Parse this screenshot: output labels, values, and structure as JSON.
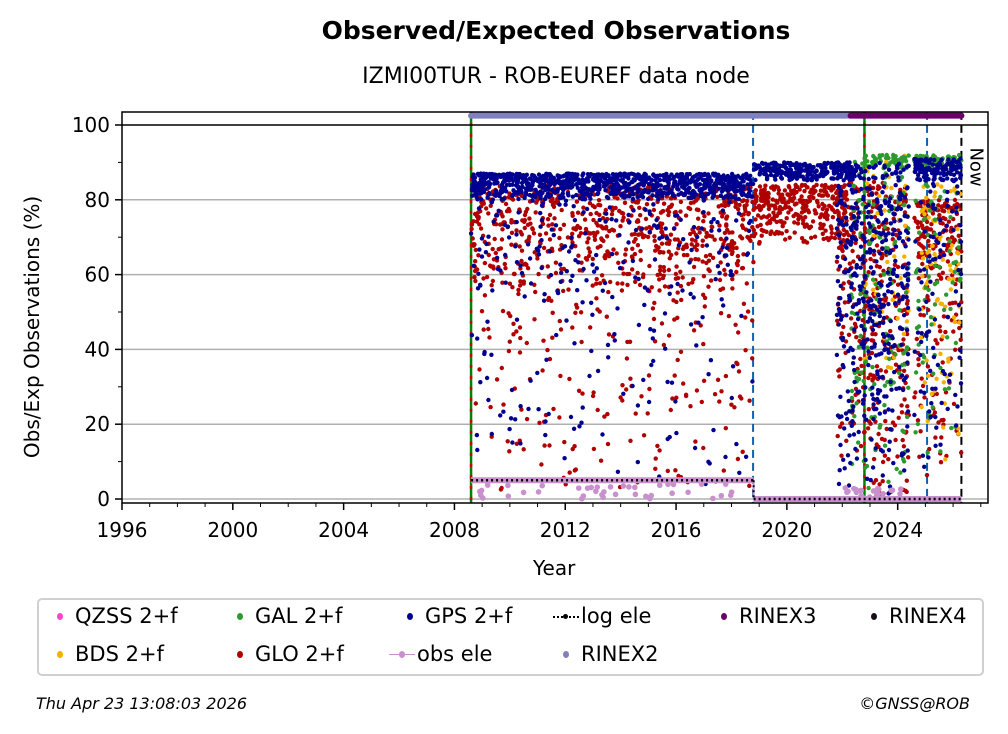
{
  "chart_data": {
    "type": "scatter",
    "title": "Observed/Expected Observations",
    "subtitle": "IZMI00TUR - ROB-EUREF data node",
    "xlabel": "Year",
    "ylabel": "Obs/Exp Observations (%)",
    "xlim": [
      1996,
      2027.26
    ],
    "ylim": [
      -1,
      103.5
    ],
    "xticks": [
      1996,
      2000,
      2004,
      2008,
      2012,
      2016,
      2020,
      2024
    ],
    "yticks": [
      0,
      20,
      40,
      60,
      80,
      100
    ],
    "grid": "horizontal",
    "legend_position": "bottom",
    "now_label": "Now",
    "series": [
      {
        "name": "QZSS 2+f",
        "color": "#ff44cc",
        "kind": "point",
        "clusters": []
      },
      {
        "name": "BDS 2+f",
        "color": "#f5b000",
        "kind": "point",
        "clusters": [
          [
            2022.7,
            2024.4,
            30,
            92,
            60
          ],
          [
            2024.8,
            2026.3,
            10,
            85,
            90
          ]
        ]
      },
      {
        "name": "GAL 2+f",
        "color": "#2e9a2e",
        "kind": "point",
        "clusters": [
          [
            2022.3,
            2024.4,
            0,
            92,
            160
          ],
          [
            2022.8,
            2024.4,
            88,
            92,
            60
          ],
          [
            2024.6,
            2026.3,
            88,
            92,
            70
          ],
          [
            2024.6,
            2026.3,
            5,
            85,
            70
          ]
        ]
      },
      {
        "name": "GLO 2+f",
        "color": "#b00000",
        "kind": "point",
        "clusters": [
          [
            2008.6,
            2018.8,
            55,
            84,
            700
          ],
          [
            2008.6,
            2018.8,
            2,
            55,
            180
          ],
          [
            2018.8,
            2022.2,
            68,
            84,
            300
          ],
          [
            2021.8,
            2024.4,
            0,
            85,
            350
          ],
          [
            2024.6,
            2026.3,
            60,
            80,
            140
          ],
          [
            2024.6,
            2026.3,
            5,
            60,
            80
          ]
        ]
      },
      {
        "name": "GPS 2+f",
        "color": "#000090",
        "kind": "point",
        "clusters": [
          [
            2008.6,
            2018.8,
            80,
            87,
            900
          ],
          [
            2008.6,
            2018.8,
            50,
            80,
            180
          ],
          [
            2008.6,
            2018.8,
            2,
            50,
            90
          ],
          [
            2018.8,
            2022.5,
            85,
            90,
            250
          ],
          [
            2021.8,
            2024.4,
            0,
            90,
            450
          ],
          [
            2024.6,
            2026.3,
            85,
            91,
            130
          ],
          [
            2024.6,
            2026.3,
            5,
            85,
            90
          ]
        ]
      },
      {
        "name": "obs ele",
        "color": "#c890cc",
        "kind": "line-marker",
        "segments": [
          [
            2008.6,
            2018.8,
            5
          ],
          [
            2018.8,
            2026.3,
            0
          ]
        ]
      },
      {
        "name": "log ele",
        "color": "#000000",
        "kind": "dotted-line",
        "segments": [
          [
            2008.6,
            2018.8,
            5
          ],
          [
            2018.8,
            2026.3,
            0
          ]
        ]
      },
      {
        "name": "RINEX2",
        "color": "#8080c0",
        "kind": "bar-top",
        "range": [
          2008.6,
          2022.3
        ]
      },
      {
        "name": "RINEX3",
        "color": "#6a006a",
        "kind": "bar-top",
        "range": [
          2022.3,
          2026.3
        ]
      },
      {
        "name": "RINEX4",
        "color": "#1a0a1a",
        "kind": "bar-top",
        "range": []
      }
    ],
    "vertical_lines": [
      {
        "x": 2008.6,
        "style": "green-red-dashed"
      },
      {
        "x": 2018.78,
        "style": "blue-dashed"
      },
      {
        "x": 2022.8,
        "style": "green-red-dashed"
      },
      {
        "x": 2025.06,
        "style": "blue-dashed"
      },
      {
        "x": 2026.3,
        "style": "black-dashed",
        "label": "Now"
      }
    ]
  },
  "legend": {
    "items": [
      {
        "label": "QZSS 2+f",
        "color": "#ff44cc",
        "type": "dot"
      },
      {
        "label": "GAL 2+f",
        "color": "#2e9a2e",
        "type": "dot"
      },
      {
        "label": "GPS 2+f",
        "color": "#000090",
        "type": "dot"
      },
      {
        "label": "log ele",
        "color": "#000000",
        "type": "dotted"
      },
      {
        "label": "RINEX3",
        "color": "#6a006a",
        "type": "dot"
      },
      {
        "label": "RINEX4",
        "color": "#1a0a1a",
        "type": "dot"
      },
      {
        "label": "BDS 2+f",
        "color": "#f5b000",
        "type": "dot"
      },
      {
        "label": "GLO 2+f",
        "color": "#b00000",
        "type": "dot"
      },
      {
        "label": "obs ele",
        "color": "#c890cc",
        "type": "line"
      },
      {
        "label": "RINEX2",
        "color": "#8080c0",
        "type": "dot"
      }
    ]
  },
  "footer": {
    "timestamp": "Thu Apr 23 13:08:03 2026",
    "credit": "©GNSS@ROB"
  }
}
